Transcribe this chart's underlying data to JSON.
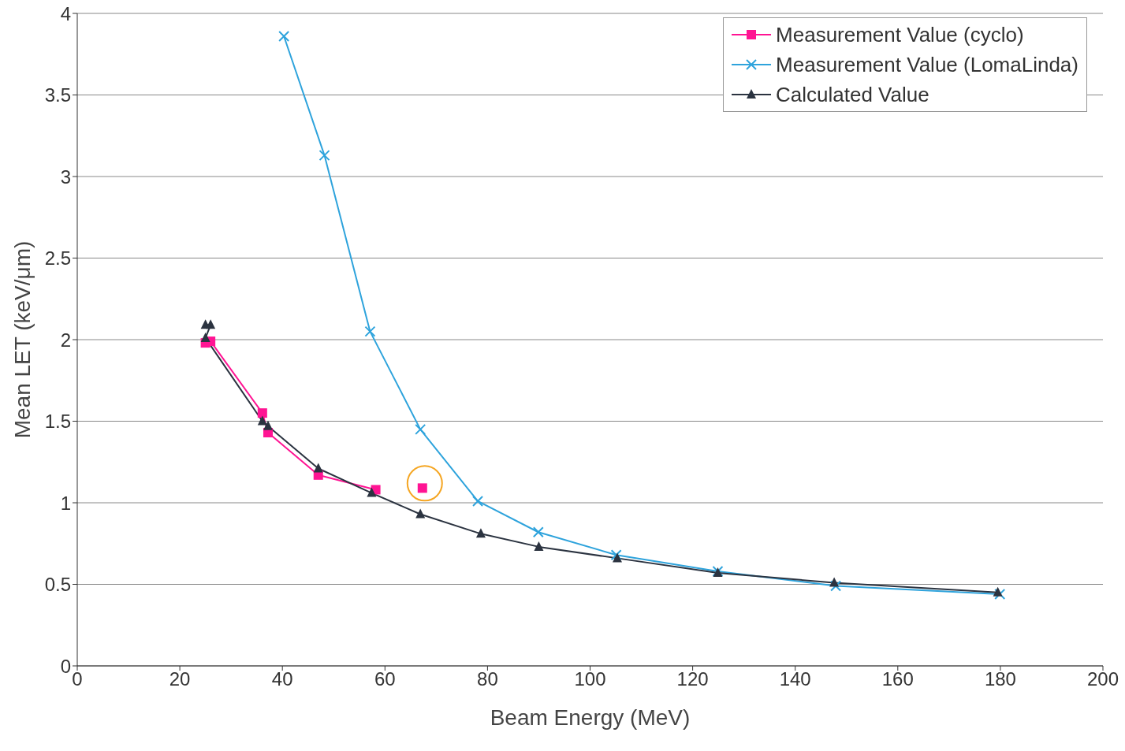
{
  "chart_data": {
    "type": "line",
    "xlabel": "Beam Energy (MeV)",
    "ylabel": "Mean LET (keV/μm)",
    "xlim": [
      0,
      200
    ],
    "xticks": [
      0,
      20,
      40,
      60,
      80,
      100,
      120,
      140,
      160,
      180,
      200
    ],
    "ylim": [
      0,
      4
    ],
    "yticks": [
      0,
      0.5,
      1,
      1.5,
      2,
      2.5,
      3,
      3.5,
      4
    ],
    "grid": "y",
    "legend": "top right",
    "series": [
      {
        "name": "Measurement Value (cyclo)",
        "color": "#ff1493",
        "marker": "square",
        "x": [
          25,
          26,
          36.1,
          37.2,
          47,
          58.2,
          62,
          67.3
        ],
        "values": [
          1.98,
          1.99,
          1.55,
          1.43,
          1.17,
          1.08,
          null,
          1.09
        ]
      },
      {
        "name": "Measurement Value (LomaLinda)",
        "color": "#2ea3dc",
        "marker": "cross",
        "x": [
          40.3,
          48.2,
          57.1,
          66.9,
          78.1,
          89.9,
          105.1,
          124.9,
          147.9,
          179.9
        ],
        "values": [
          3.86,
          3.13,
          2.05,
          1.45,
          1.01,
          0.82,
          0.68,
          0.58,
          0.49,
          0.44
        ]
      },
      {
        "name": "Calculated Value",
        "color": "#2b3340",
        "marker": "triangle",
        "x": [
          25,
          26,
          25,
          36.1,
          37.2,
          47,
          57.4,
          66.9,
          78.7,
          90,
          105.3,
          124.9,
          147.6,
          179.5
        ],
        "values": [
          2.09,
          2.09,
          2.01,
          1.5,
          1.47,
          1.21,
          1.06,
          0.93,
          0.81,
          0.73,
          0.66,
          0.57,
          0.51,
          0.45
        ]
      }
    ]
  }
}
